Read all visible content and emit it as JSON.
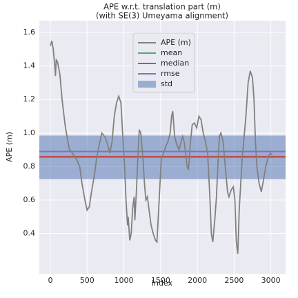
{
  "chart_data": {
    "type": "line",
    "title": "APE w.r.t. translation part (m)",
    "subtitle": "(with SE(3) Umeyama alignment)",
    "xlabel": "index",
    "ylabel": "APE (m)",
    "xlim": [
      -150,
      3200
    ],
    "ylim": [
      0.16,
      1.67
    ],
    "xticks": [
      0,
      500,
      1000,
      1500,
      2000,
      2500,
      3000
    ],
    "yticks": [
      0.4,
      0.6,
      0.8,
      {
        "value": 1.0,
        "label": "1.0"
      },
      1.2,
      1.4,
      1.6
    ],
    "grid": true,
    "legend": "upper center",
    "series": [
      {
        "name": "APE (m)",
        "color": "#808080",
        "x": [
          0,
          20,
          40,
          60,
          70,
          80,
          100,
          130,
          160,
          200,
          230,
          260,
          300,
          330,
          360,
          400,
          430,
          470,
          500,
          530,
          560,
          600,
          630,
          660,
          700,
          720,
          750,
          780,
          810,
          840,
          870,
          900,
          930,
          960,
          990,
          1010,
          1030,
          1050,
          1060,
          1080,
          1100,
          1120,
          1140,
          1150,
          1170,
          1190,
          1210,
          1230,
          1260,
          1280,
          1300,
          1320,
          1340,
          1370,
          1400,
          1430,
          1450,
          1480,
          1510,
          1540,
          1570,
          1600,
          1630,
          1650,
          1665,
          1690,
          1720,
          1750,
          1780,
          1800,
          1820,
          1840,
          1860,
          1880,
          1900,
          1930,
          1960,
          1990,
          2020,
          2050,
          2080,
          2110,
          2140,
          2170,
          2190,
          2210,
          2240,
          2260,
          2280,
          2300,
          2320,
          2350,
          2380,
          2410,
          2430,
          2460,
          2490,
          2510,
          2530,
          2550,
          2570,
          2590,
          2610,
          2630,
          2660,
          2690,
          2720,
          2750,
          2770,
          2790,
          2810,
          2840,
          2870,
          2900,
          2930,
          2960,
          2990,
          3020
        ],
        "values": [
          1.52,
          1.55,
          1.5,
          1.4,
          1.34,
          1.44,
          1.42,
          1.35,
          1.2,
          1.05,
          0.97,
          0.9,
          0.88,
          0.86,
          0.84,
          0.8,
          0.7,
          0.6,
          0.54,
          0.56,
          0.65,
          0.75,
          0.85,
          0.92,
          1.0,
          0.99,
          0.97,
          0.93,
          0.88,
          0.95,
          1.1,
          1.18,
          1.22,
          1.18,
          0.95,
          0.8,
          0.6,
          0.45,
          0.5,
          0.36,
          0.4,
          0.55,
          0.62,
          0.48,
          0.65,
          0.85,
          1.02,
          1.0,
          0.85,
          0.7,
          0.6,
          0.62,
          0.55,
          0.45,
          0.4,
          0.36,
          0.35,
          0.6,
          0.85,
          0.88,
          0.92,
          0.95,
          1.0,
          1.1,
          1.13,
          0.98,
          0.93,
          0.9,
          0.95,
          0.98,
          0.95,
          0.88,
          0.8,
          0.78,
          0.92,
          1.05,
          1.06,
          1.03,
          1.1,
          1.08,
          1.0,
          0.95,
          0.88,
          0.62,
          0.4,
          0.35,
          0.5,
          0.62,
          0.82,
          0.98,
          1.0,
          0.95,
          0.8,
          0.65,
          0.62,
          0.66,
          0.68,
          0.6,
          0.35,
          0.28,
          0.55,
          0.7,
          0.85,
          0.95,
          1.1,
          1.3,
          1.37,
          1.33,
          1.2,
          0.95,
          0.8,
          0.7,
          0.65,
          0.72,
          0.8,
          0.85,
          0.88,
          0.87
        ]
      }
    ],
    "stats": [
      {
        "name": "mean",
        "color": "#55a868",
        "value": 0.855
      },
      {
        "name": "median",
        "color": "#c44e52",
        "value": 0.86
      },
      {
        "name": "rmse",
        "color": "#8172b2",
        "value": 0.89
      },
      {
        "name": "std",
        "color": "#4c72b0",
        "value": 0.13
      }
    ]
  }
}
